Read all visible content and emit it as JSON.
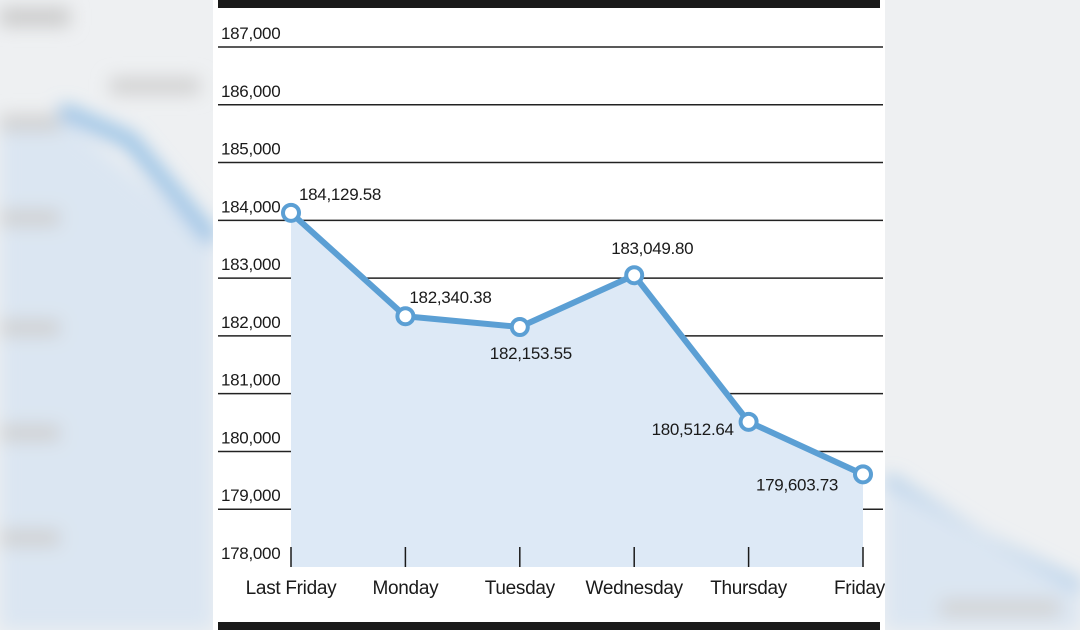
{
  "chart_data": {
    "type": "line",
    "categories": [
      "Last Friday",
      "Monday",
      "Tuesday",
      "Wednesday",
      "Thursday",
      "Friday"
    ],
    "values": [
      184129.58,
      182340.38,
      182153.55,
      183049.8,
      180512.64,
      179603.73
    ],
    "data_labels": [
      "184,129.58",
      "182,340.38",
      "182,153.55",
      "183,049.80",
      "180,512.64",
      "179,603.73"
    ],
    "y_ticks": [
      "187,000",
      "186,000",
      "185,000",
      "184,000",
      "183,000",
      "182,000",
      "181,000",
      "180,000",
      "179,000",
      "178,000"
    ],
    "ylim": [
      178000,
      187000
    ],
    "grid": true,
    "colors": {
      "line": "#5b9fd4",
      "fill": "#dde9f6",
      "gridline": "#222222",
      "frame": "#1a1a1a"
    }
  }
}
